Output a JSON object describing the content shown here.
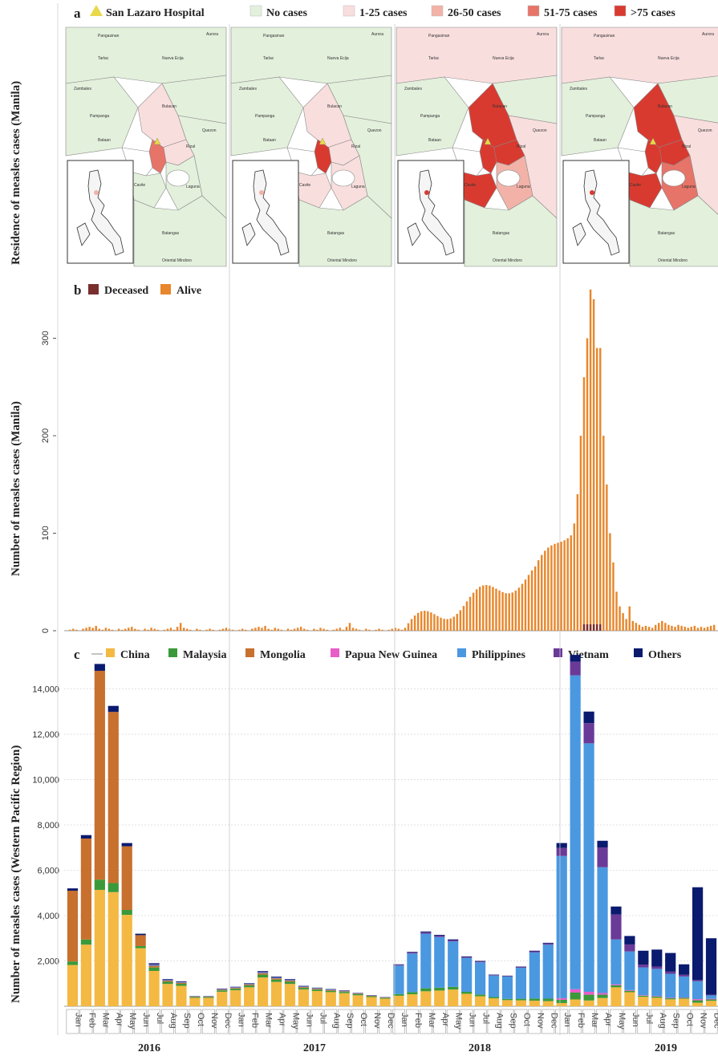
{
  "chart_data": [
    {
      "panel": "a",
      "type": "map",
      "ylabel": "Residence of measles cases (Manila)",
      "legend": [
        {
          "name": "San Lazaro Hospital",
          "color": "#e8d84a",
          "shape": "triangle"
        },
        {
          "name": "No cases",
          "color": "#e3f0dc"
        },
        {
          "name": "1-25 cases",
          "color": "#f9dede"
        },
        {
          "name": "26-50 cases",
          "color": "#f2b2a8"
        },
        {
          "name": "51-75 cases",
          "color": "#e67468"
        },
        {
          "name": ">75 cases",
          "color": "#d93a30"
        }
      ],
      "map_labels": [
        "Pangasinan",
        "Tarlac",
        "Nueva Ecija",
        "Aurora",
        "Zambales",
        "Pampanga",
        "Bulacan",
        "Bataan",
        "Rizal",
        "Cavite",
        "Laguna",
        "Quezon",
        "Batangas",
        "Oriental Mindoro"
      ]
    },
    {
      "panel": "b",
      "type": "bar",
      "ylabel": "Number of measles cases (Manila)",
      "legend": [
        {
          "name": "Deceased",
          "color": "#7a2e2e"
        },
        {
          "name": "Alive",
          "color": "#e8872c"
        }
      ],
      "yticks": [
        "0",
        "100",
        "200",
        "300"
      ],
      "ylim": [
        0,
        355
      ]
    },
    {
      "panel": "c",
      "type": "bar",
      "ylabel": "Number of measles cases (Western Pacific Region)",
      "legend": [
        {
          "name": "China",
          "color": "#f4b942"
        },
        {
          "name": "Malaysia",
          "color": "#3a9a3a"
        },
        {
          "name": "Mongolia",
          "color": "#c8702e"
        },
        {
          "name": "Papua New Guinea",
          "color": "#e85ec8"
        },
        {
          "name": "Philippines",
          "color": "#4a98e0"
        },
        {
          "name": "Vietnam",
          "color": "#6a3a98"
        },
        {
          "name": "Others",
          "color": "#0a1a6e"
        }
      ],
      "yticks": [
        "2,000",
        "4,000",
        "6,000",
        "8,000",
        "10,000",
        "12,000",
        "14,000"
      ],
      "ylim": [
        0,
        15500
      ],
      "months": [
        "Jan",
        "Feb",
        "Mar",
        "Apr",
        "May",
        "Jun",
        "Jul",
        "Aug",
        "Sep",
        "Oct",
        "Nov",
        "Dec"
      ],
      "years": [
        "2016",
        "2017",
        "2018",
        "2019"
      ],
      "totals": [
        5200,
        7550,
        15100,
        13250,
        7200,
        3200,
        1900,
        1200,
        1100,
        450,
        450,
        780,
        860,
        1020,
        1550,
        1310,
        1200,
        900,
        820,
        760,
        700,
        590,
        490,
        410,
        1850,
        2400,
        3300,
        3150,
        2950,
        2200,
        2000,
        1400,
        1350,
        1750,
        2450,
        2800,
        7200,
        15500,
        13000,
        7300,
        4400,
        3100,
        2450,
        2500,
        2350,
        1850,
        5250,
        3000
      ]
    }
  ]
}
